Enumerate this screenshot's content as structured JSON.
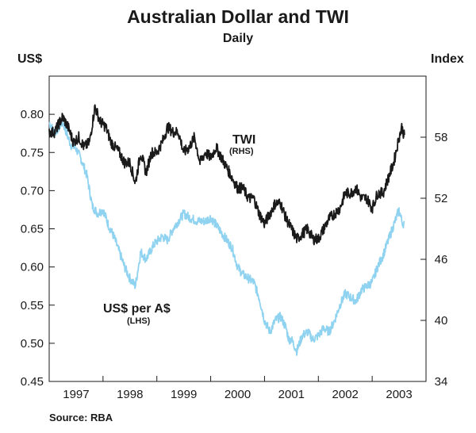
{
  "chart_data": {
    "type": "line",
    "title": "Australian Dollar and TWI",
    "subtitle": "Daily",
    "left_axis": {
      "unit": "US$",
      "ylim": [
        0.45,
        0.85
      ],
      "ticks": [
        "0.80",
        "0.75",
        "0.70",
        "0.65",
        "0.60",
        "0.55",
        "0.50",
        "0.45"
      ],
      "tick_values": [
        0.8,
        0.75,
        0.7,
        0.65,
        0.6,
        0.55,
        0.5,
        0.45
      ]
    },
    "right_axis": {
      "unit": "Index",
      "ylim": [
        34,
        64
      ],
      "ticks": [
        "58",
        "52",
        "46",
        "40",
        "34"
      ],
      "tick_values": [
        58,
        52,
        46,
        40,
        34
      ]
    },
    "x_axis": {
      "range": [
        1996.5,
        2003.5
      ],
      "tick_labels": [
        "1997",
        "1998",
        "1999",
        "2000",
        "2001",
        "2002",
        "2003"
      ],
      "label_centers": [
        1997.0,
        1998.0,
        1999.0,
        2000.0,
        2001.0,
        2002.0,
        2003.0
      ],
      "year_boundaries": [
        1997.5,
        1998.5,
        1999.5,
        2000.5,
        2001.5,
        2002.5
      ]
    },
    "series": [
      {
        "name": "US$ per A$",
        "sub": "(LHS)",
        "axis": "left",
        "color": "#8fd3f0",
        "x": [
          1996.5,
          1996.6,
          1996.75,
          1996.9,
          1997.0,
          1997.1,
          1997.2,
          1997.3,
          1997.4,
          1997.5,
          1997.6,
          1997.7,
          1997.8,
          1997.9,
          1998.0,
          1998.1,
          1998.2,
          1998.3,
          1998.45,
          1998.6,
          1998.7,
          1998.8,
          1998.9,
          1999.0,
          1999.1,
          1999.25,
          1999.4,
          1999.5,
          1999.6,
          1999.75,
          1999.9,
          2000.0,
          2000.1,
          2000.2,
          2000.3,
          2000.4,
          2000.5,
          2000.6,
          2000.7,
          2000.8,
          2000.9,
          2000.95,
          2001.0,
          2001.1,
          2001.2,
          2001.3,
          2001.4,
          2001.5,
          2001.6,
          2001.7,
          2001.8,
          2001.9,
          2002.0,
          2002.1,
          2002.2,
          2002.3,
          2002.4,
          2002.5,
          2002.6,
          2002.7,
          2002.8,
          2002.9,
          2003.0,
          2003.05,
          2003.1
        ],
        "y": [
          0.79,
          0.775,
          0.79,
          0.76,
          0.755,
          0.74,
          0.72,
          0.68,
          0.67,
          0.675,
          0.655,
          0.64,
          0.62,
          0.6,
          0.585,
          0.575,
          0.62,
          0.61,
          0.63,
          0.64,
          0.635,
          0.65,
          0.66,
          0.67,
          0.665,
          0.66,
          0.66,
          0.665,
          0.655,
          0.64,
          0.625,
          0.6,
          0.59,
          0.585,
          0.58,
          0.56,
          0.53,
          0.515,
          0.53,
          0.535,
          0.52,
          0.505,
          0.505,
          0.49,
          0.51,
          0.515,
          0.505,
          0.51,
          0.52,
          0.515,
          0.53,
          0.55,
          0.565,
          0.56,
          0.555,
          0.57,
          0.575,
          0.58,
          0.6,
          0.615,
          0.635,
          0.655,
          0.675,
          0.66,
          0.655
        ]
      },
      {
        "name": "TWI",
        "sub": "(RHS)",
        "axis": "right",
        "color": "#1a1a1a",
        "x": [
          1996.5,
          1996.6,
          1996.75,
          1996.85,
          1996.95,
          1997.05,
          1997.15,
          1997.25,
          1997.35,
          1997.45,
          1997.55,
          1997.65,
          1997.8,
          1997.9,
          1998.0,
          1998.1,
          1998.2,
          1998.3,
          1998.4,
          1998.5,
          1998.6,
          1998.7,
          1998.8,
          1998.9,
          1999.0,
          1999.1,
          1999.2,
          1999.3,
          1999.4,
          1999.5,
          1999.6,
          1999.7,
          1999.8,
          1999.9,
          2000.0,
          2000.1,
          2000.2,
          2000.3,
          2000.4,
          2000.5,
          2000.6,
          2000.7,
          2000.8,
          2000.9,
          2001.0,
          2001.1,
          2001.2,
          2001.3,
          2001.4,
          2001.5,
          2001.6,
          2001.7,
          2001.8,
          2001.9,
          2002.0,
          2002.1,
          2002.2,
          2002.3,
          2002.4,
          2002.5,
          2002.6,
          2002.7,
          2002.8,
          2002.9,
          2003.0,
          2003.05,
          2003.1
        ],
        "y": [
          58.5,
          58.5,
          60,
          59,
          57.5,
          58,
          57,
          57.5,
          61,
          59.5,
          59,
          57.5,
          56.5,
          55.5,
          55.5,
          53.5,
          56.5,
          54.5,
          56.5,
          56.5,
          57.5,
          59,
          58.5,
          58.5,
          56.5,
          57,
          58,
          55.5,
          56.5,
          56,
          57,
          56,
          55,
          54,
          53,
          53,
          52,
          52,
          50.5,
          49.5,
          50.5,
          51.5,
          51.5,
          50,
          49,
          48,
          48.5,
          49,
          48,
          48,
          49,
          50,
          50.5,
          51,
          52.5,
          52.5,
          53,
          52,
          52,
          51,
          52.5,
          52.5,
          54,
          55.5,
          58,
          59,
          58
        ]
      }
    ],
    "annotations": {
      "twi_label": "TWI",
      "twi_sub": "(RHS)",
      "aud_label": "US$ per A$",
      "aud_sub": "(LHS)"
    },
    "source": "Source:  RBA"
  }
}
